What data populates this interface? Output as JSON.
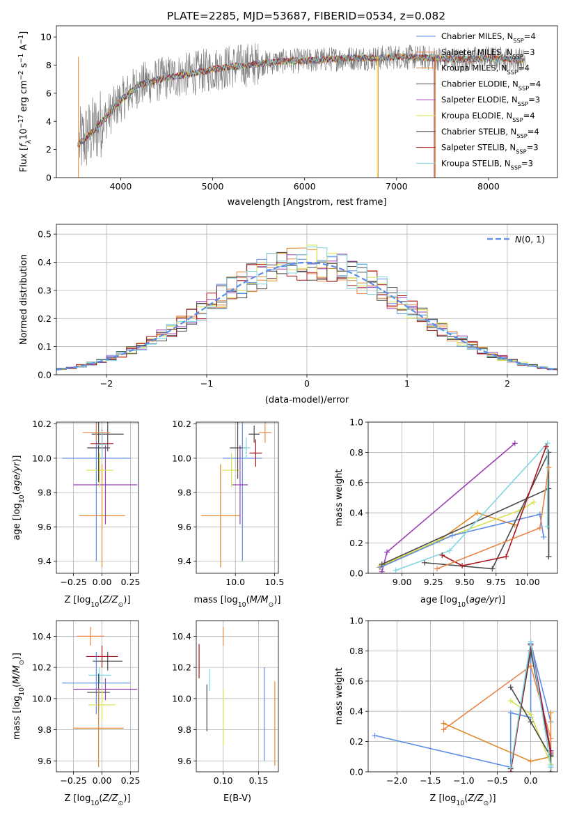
{
  "figure_title": "PLATE=2285, MJD=53687, FIBERID=0534, z=0.082",
  "palette": {
    "Chabrier MILES": "#5b8de8",
    "Salpeter MILES": "#e8864a",
    "Kroupa MILES": "#e1882a",
    "Chabrier ELODIE": "#4a4a4a",
    "Salpeter ELODIE": "#9b3fb4",
    "Kroupa ELODIE": "#d8e24b",
    "Chabrier STELIB": "#4a4a4a",
    "Salpeter STELIB": "#a8171d",
    "Kroupa STELIB": "#7fd6e0"
  },
  "chart_data": [
    {
      "type": "line",
      "title": "PLATE=2285, MJD=53687, FIBERID=0534, z=0.082",
      "xlabel": "wavelength [Angstrom, rest frame]",
      "ylabel": "Flux [f_λ 10^-17 erg cm^-2 s^-1 A^-1]",
      "xlim": [
        3300,
        8750
      ],
      "ylim": [
        0,
        10.8
      ],
      "xticks": [
        4000,
        5000,
        6000,
        7000,
        8000
      ],
      "yticks": [
        0,
        2,
        4,
        6,
        8,
        10
      ],
      "legend_position": "top-right",
      "legend": [
        {
          "name": "Chabrier MILES",
          "nssp": "4"
        },
        {
          "name": "Salpeter MILES",
          "nssp": "3"
        },
        {
          "name": "Kroupa MILES",
          "nssp": "4"
        },
        {
          "name": "Chabrier ELODIE",
          "nssp": "4"
        },
        {
          "name": "Salpeter ELODIE",
          "nssp": "3"
        },
        {
          "name": "Kroupa ELODIE",
          "nssp": "4"
        },
        {
          "name": "Chabrier STELIB",
          "nssp": "4"
        },
        {
          "name": "Salpeter STELIB",
          "nssp": "3"
        },
        {
          "name": "Kroupa STELIB",
          "nssp": "3"
        }
      ],
      "continuum": [
        [
          3530,
          2.3
        ],
        [
          3700,
          3.3
        ],
        [
          3900,
          4.7
        ],
        [
          4000,
          5.5
        ],
        [
          4200,
          6.6
        ],
        [
          4500,
          7.1
        ],
        [
          4700,
          7.3
        ],
        [
          5000,
          7.7
        ],
        [
          5200,
          7.9
        ],
        [
          5500,
          8.1
        ],
        [
          5800,
          8.3
        ],
        [
          6000,
          8.3
        ],
        [
          6200,
          8.4
        ],
        [
          6500,
          8.5
        ],
        [
          6800,
          8.5
        ],
        [
          7000,
          8.6
        ],
        [
          7400,
          8.5
        ],
        [
          7700,
          8.4
        ],
        [
          8000,
          8.5
        ],
        [
          8300,
          8.4
        ],
        [
          8400,
          8.3
        ]
      ],
      "data_range": [
        3550,
        8400
      ],
      "model_range": [
        3530,
        8390
      ]
    },
    {
      "type": "line",
      "xlabel": "(data-model)/error",
      "ylabel": "Normed distribution",
      "xlim": [
        -2.5,
        2.5
      ],
      "ylim": [
        0,
        0.535
      ],
      "xticks": [
        -2,
        -1,
        0,
        1,
        2
      ],
      "yticks": [
        0.0,
        0.1,
        0.2,
        0.3,
        0.4,
        0.5
      ],
      "grid": true,
      "legend_position": "top-right",
      "legend": [
        {
          "name": "N(0, 1)",
          "style": "dashed"
        }
      ],
      "histogram_bins": {
        "start": -2.5,
        "width": 0.1,
        "count": 50
      }
    },
    {
      "type": "scatter",
      "xlabel": "Z [log10(Z/Z⊙)]",
      "ylabel": "age [log10(age/yr)]",
      "xlim": [
        -0.4,
        0.32
      ],
      "ylim": [
        9.33,
        10.21
      ],
      "xticks": [
        -0.25,
        0.0,
        0.25
      ],
      "yticks": [
        9.4,
        9.6,
        9.8,
        10.0,
        10.2
      ],
      "grid": true,
      "errorbars": [
        {
          "series": "Chabrier MILES",
          "x": -0.05,
          "xerr": 0.3,
          "y": 10.0,
          "yerr": 0.6
        },
        {
          "series": "Kroupa MILES",
          "x": 0.0,
          "xerr": 0.2,
          "y": 9.665,
          "yerr": 0.3
        },
        {
          "series": "Salpeter ELODIE",
          "x": 0.03,
          "xerr": 0.28,
          "y": 9.845,
          "yerr": 0.23
        },
        {
          "series": "Kroupa ELODIE",
          "x": -0.02,
          "xerr": 0.12,
          "y": 9.93,
          "yerr": 0.1
        },
        {
          "series": "Chabrier ELODIE",
          "x": 0.05,
          "xerr": 0.14,
          "y": 10.14,
          "yerr": 0.1
        },
        {
          "series": "Chabrier STELIB",
          "x": -0.03,
          "xerr": 0.1,
          "y": 10.06,
          "yerr": 0.2
        },
        {
          "series": "Salpeter STELIB",
          "x": 0.0,
          "xerr": 0.1,
          "y": 10.085,
          "yerr": 0.08
        },
        {
          "series": "Kroupa STELIB",
          "x": 0.0,
          "xerr": 0.04,
          "y": 10.08,
          "yerr": 0.08
        },
        {
          "series": "Salpeter MILES",
          "x": -0.05,
          "xerr": 0.12,
          "y": 10.15,
          "yerr": 0.05
        }
      ]
    },
    {
      "type": "scatter",
      "xlabel": "mass [log10(M/M⊙)]",
      "ylabel": "",
      "xlim": [
        9.5,
        10.55
      ],
      "ylim": [
        9.33,
        10.21
      ],
      "xticks": [
        10.0,
        10.5
      ],
      "yticks": [
        9.4,
        9.6,
        9.8,
        10.0,
        10.2
      ],
      "grid": true,
      "errorbars": [
        {
          "series": "Chabrier MILES",
          "x": 10.09,
          "xerr": 0.25,
          "y": 10.0,
          "yerr": 0.6
        },
        {
          "series": "Kroupa MILES",
          "x": 9.81,
          "xerr": 0.25,
          "y": 9.665,
          "yerr": 0.3
        },
        {
          "series": "Salpeter ELODIE",
          "x": 10.06,
          "xerr": 0.1,
          "y": 9.845,
          "yerr": 0.23
        },
        {
          "series": "Kroupa ELODIE",
          "x": 9.95,
          "xerr": 0.12,
          "y": 9.93,
          "yerr": 0.1
        },
        {
          "series": "Chabrier ELODIE",
          "x": 10.24,
          "xerr": 0.07,
          "y": 10.14,
          "yerr": 0.05
        },
        {
          "series": "Chabrier STELIB",
          "x": 10.03,
          "xerr": 0.1,
          "y": 10.06,
          "yerr": 0.18
        },
        {
          "series": "Salpeter STELIB",
          "x": 10.26,
          "xerr": 0.08,
          "y": 10.03,
          "yerr": 0.08
        },
        {
          "series": "Kroupa STELIB",
          "x": 10.14,
          "xerr": 0.05,
          "y": 10.06,
          "yerr": 0.06
        },
        {
          "series": "Salpeter MILES",
          "x": 10.38,
          "xerr": 0.08,
          "y": 10.15,
          "yerr": 0.06
        }
      ]
    },
    {
      "type": "line",
      "xlabel": "age [log10(age/yr)]",
      "ylabel": "mass weight",
      "xlim": [
        8.73,
        10.24
      ],
      "ylim": [
        0,
        1.0
      ],
      "xticks": [
        9.0,
        9.25,
        9.5,
        9.75,
        10.0
      ],
      "yticks": [
        0.0,
        0.2,
        0.4,
        0.6,
        0.8,
        1.0
      ],
      "grid": true,
      "series": [
        {
          "name": "Salpeter ELODIE",
          "x": [
            8.84,
            8.88,
            9.9
          ],
          "y": [
            0.01,
            0.14,
            0.86
          ]
        },
        {
          "name": "Kroupa MILES",
          "x": [
            8.82,
            9.3,
            9.6,
            9.9
          ],
          "y": [
            0.04,
            0.22,
            0.4,
            0.32
          ]
        },
        {
          "name": "Kroupa ELODIE",
          "x": [
            8.83,
            9.3,
            9.95,
            10.05
          ],
          "y": [
            0.05,
            0.22,
            0.42,
            0.47
          ]
        },
        {
          "name": "Chabrier MILES",
          "x": [
            8.83,
            9.4,
            10.1,
            10.13
          ],
          "y": [
            0.04,
            0.25,
            0.39,
            0.24
          ]
        },
        {
          "name": "Chabrier ELODIE",
          "x": [
            8.84,
            10.17,
            10.17
          ],
          "y": [
            0.06,
            0.56,
            0.11
          ]
        },
        {
          "name": "Chabrier STELIB",
          "x": [
            9.18,
            9.72,
            10.17,
            10.17
          ],
          "y": [
            0.07,
            0.03,
            0.8,
            0.11
          ]
        },
        {
          "name": "Kroupa STELIB",
          "x": [
            8.95,
            9.38,
            10.16,
            10.16
          ],
          "y": [
            0.02,
            0.15,
            0.86,
            0.31
          ]
        },
        {
          "name": "Salpeter STELIB",
          "x": [
            9.32,
            9.48,
            9.83,
            10.15
          ],
          "y": [
            0.12,
            0.05,
            0.11,
            0.84
          ]
        },
        {
          "name": "Salpeter MILES",
          "x": [
            9.28,
            10.1,
            10.17
          ],
          "y": [
            0.03,
            0.3,
            0.7
          ]
        }
      ]
    },
    {
      "type": "scatter",
      "xlabel": "Z [log10(Z/Z⊙)]",
      "ylabel": "mass [log10(M/M⊙)]",
      "xlim": [
        -0.4,
        0.32
      ],
      "ylim": [
        9.53,
        10.5
      ],
      "xticks": [
        -0.25,
        0.0,
        0.25
      ],
      "yticks": [
        9.6,
        9.8,
        10.0,
        10.2,
        10.4
      ],
      "grid": true,
      "errorbars": [
        {
          "series": "Salpeter MILES",
          "x": -0.1,
          "xerr": 0.12,
          "y": 10.4,
          "yerr": 0.06
        },
        {
          "series": "Salpeter STELIB",
          "x": 0.0,
          "xerr": 0.14,
          "y": 10.27,
          "yerr": 0.07
        },
        {
          "series": "Chabrier ELODIE",
          "x": 0.05,
          "xerr": 0.13,
          "y": 10.24,
          "yerr": 0.06
        },
        {
          "series": "Kroupa STELIB",
          "x": -0.02,
          "xerr": 0.1,
          "y": 10.15,
          "yerr": 0.05
        },
        {
          "series": "Chabrier MILES",
          "x": -0.05,
          "xerr": 0.3,
          "y": 10.1,
          "yerr": 0.2
        },
        {
          "series": "Salpeter ELODIE",
          "x": 0.03,
          "xerr": 0.28,
          "y": 10.06,
          "yerr": 0.07
        },
        {
          "series": "Chabrier STELIB",
          "x": -0.03,
          "xerr": 0.1,
          "y": 10.04,
          "yerr": 0.12
        },
        {
          "series": "Kroupa ELODIE",
          "x": 0.0,
          "xerr": 0.12,
          "y": 9.96,
          "yerr": 0.1
        },
        {
          "series": "Kroupa MILES",
          "x": -0.03,
          "xerr": 0.22,
          "y": 9.81,
          "yerr": 0.25
        }
      ]
    },
    {
      "type": "scatter",
      "xlabel": "E(B-V)",
      "ylabel": "",
      "xlim": [
        0.062,
        0.178
      ],
      "ylim": [
        9.53,
        10.5
      ],
      "xticks": [
        0.05,
        0.1,
        0.15
      ],
      "yticks": [
        9.6,
        9.8,
        10.0,
        10.2,
        10.4
      ],
      "grid": true,
      "errorbars": [
        {
          "series": "Salpeter STELIB",
          "x": 0.066,
          "y": 10.24,
          "yerr": 0.11
        },
        {
          "series": "Salpeter MILES",
          "x": 0.1,
          "y": 10.4,
          "yerr": 0.06
        },
        {
          "series": "Kroupa STELIB",
          "x": 0.081,
          "y": 10.12,
          "yerr": 0.07
        },
        {
          "series": "Chabrier STELIB",
          "x": 0.077,
          "y": 9.94,
          "yerr": 0.15
        },
        {
          "series": "Kroupa ELODIE",
          "x": 0.1,
          "y": 9.88,
          "yerr": 0.18
        },
        {
          "series": "Chabrier MILES",
          "x": 0.158,
          "y": 9.9,
          "yerr": 0.3
        },
        {
          "series": "Kroupa MILES",
          "x": 0.173,
          "y": 9.84,
          "yerr": 0.27
        }
      ]
    },
    {
      "type": "line",
      "xlabel": "Z [log10(Z/Z⊙)]",
      "ylabel": "mass weight",
      "xlim": [
        -2.43,
        0.4
      ],
      "ylim": [
        0,
        1.0
      ],
      "xticks": [
        -2.0,
        -1.5,
        -1.0,
        -0.5,
        0.0
      ],
      "yticks": [
        0.0,
        0.2,
        0.4,
        0.6,
        0.8,
        1.0
      ],
      "grid": true,
      "series": [
        {
          "name": "Chabrier MILES",
          "x": [
            -2.33,
            -0.3,
            -0.3,
            0.0,
            0.0,
            0.3
          ],
          "y": [
            0.24,
            0.03,
            0.39,
            0.36,
            0.85,
            0.33
          ]
        },
        {
          "name": "Kroupa MILES",
          "x": [
            -1.3,
            0.0,
            0.3,
            0.3
          ],
          "y": [
            0.32,
            0.07,
            0.1,
            0.39
          ]
        },
        {
          "name": "Salpeter MILES",
          "x": [
            -1.3,
            0.0,
            0.3,
            0.3
          ],
          "y": [
            0.28,
            0.7,
            0.22,
            0.03
          ]
        },
        {
          "name": "Kroupa ELODIE",
          "x": [
            -0.3,
            0.0,
            0.3,
            0.3
          ],
          "y": [
            0.47,
            0.38,
            0.05,
            0.0
          ]
        },
        {
          "name": "Chabrier ELODIE",
          "x": [
            -0.3,
            0.0,
            0.3,
            0.3
          ],
          "y": [
            0.56,
            0.33,
            0.1,
            0.0
          ]
        },
        {
          "name": "Chabrier STELIB",
          "x": [
            -0.3,
            0.0,
            0.3,
            0.3
          ],
          "y": [
            0.02,
            0.8,
            0.12,
            0.11
          ]
        },
        {
          "name": "Salpeter ELODIE",
          "x": [
            -0.3,
            0.0,
            0.3
          ],
          "y": [
            0.0,
            0.86,
            0.14
          ]
        },
        {
          "name": "Salpeter STELIB",
          "x": [
            -0.3,
            0.0,
            0.3
          ],
          "y": [
            0.0,
            0.84,
            0.13
          ]
        },
        {
          "name": "Kroupa STELIB",
          "x": [
            -0.3,
            0.0,
            0.3,
            0.3
          ],
          "y": [
            0.03,
            0.86,
            0.04,
            0.03
          ]
        }
      ]
    }
  ]
}
